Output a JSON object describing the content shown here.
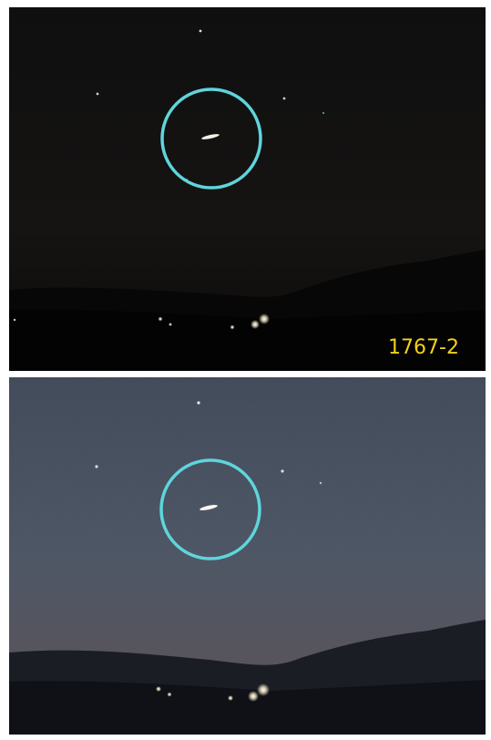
{
  "photo_label": "1767-2"
}
